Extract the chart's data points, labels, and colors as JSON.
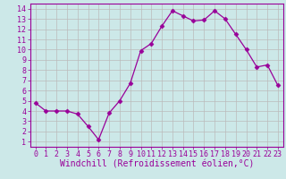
{
  "x": [
    0,
    1,
    2,
    3,
    4,
    5,
    6,
    7,
    8,
    9,
    10,
    11,
    12,
    13,
    14,
    15,
    16,
    17,
    18,
    19,
    20,
    21,
    22,
    23
  ],
  "y": [
    4.8,
    4.0,
    4.0,
    4.0,
    3.7,
    2.5,
    1.2,
    3.8,
    5.0,
    6.7,
    9.9,
    10.6,
    12.3,
    13.8,
    13.3,
    12.8,
    12.9,
    13.8,
    13.0,
    11.5,
    10.0,
    8.3,
    8.5,
    6.5
  ],
  "line_color": "#990099",
  "marker": "D",
  "marker_size": 2.5,
  "bg_color": "#cce8e8",
  "grid_color": "#bbbbbb",
  "xlabel": "Windchill (Refroidissement éolien,°C)",
  "xlim": [
    -0.5,
    23.5
  ],
  "ylim": [
    0.5,
    14.5
  ],
  "xticks": [
    0,
    1,
    2,
    3,
    4,
    5,
    6,
    7,
    8,
    9,
    10,
    11,
    12,
    13,
    14,
    15,
    16,
    17,
    18,
    19,
    20,
    21,
    22,
    23
  ],
  "yticks": [
    1,
    2,
    3,
    4,
    5,
    6,
    7,
    8,
    9,
    10,
    11,
    12,
    13,
    14
  ],
  "tick_color": "#990099",
  "label_color": "#990099",
  "xlabel_fontsize": 7,
  "tick_fontsize": 6
}
